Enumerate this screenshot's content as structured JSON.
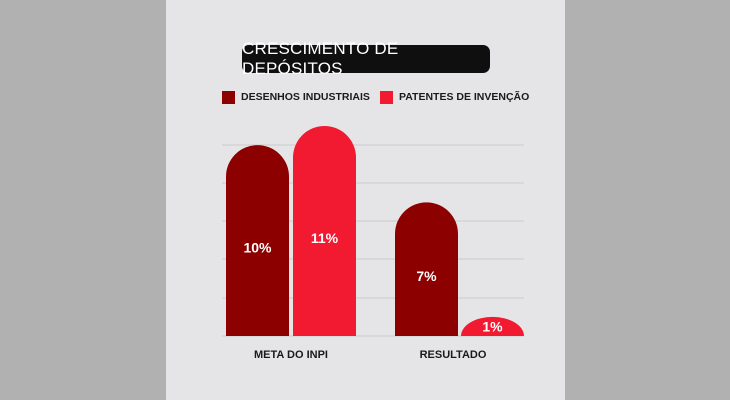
{
  "colors": {
    "series_1": "#8c0000",
    "series_2": "#f21a30",
    "grid": "#cbcbcd",
    "background": "#e5e5e7"
  },
  "chart_data": {
    "type": "bar",
    "title": "CRESCIMENTO DE DEPÓSITOS",
    "categories": [
      "META DO INPI",
      "RESULTADO"
    ],
    "series": [
      {
        "name": "DESENHOS INDUSTRIAIS",
        "values": [
          10,
          7
        ],
        "labels": [
          "10%",
          "7%"
        ]
      },
      {
        "name": "PATENTES DE INVENÇÃO",
        "values": [
          11,
          1
        ],
        "labels": [
          "11%",
          "1%"
        ]
      }
    ],
    "ylim": [
      0,
      11
    ],
    "grid": true,
    "legend": "top"
  }
}
